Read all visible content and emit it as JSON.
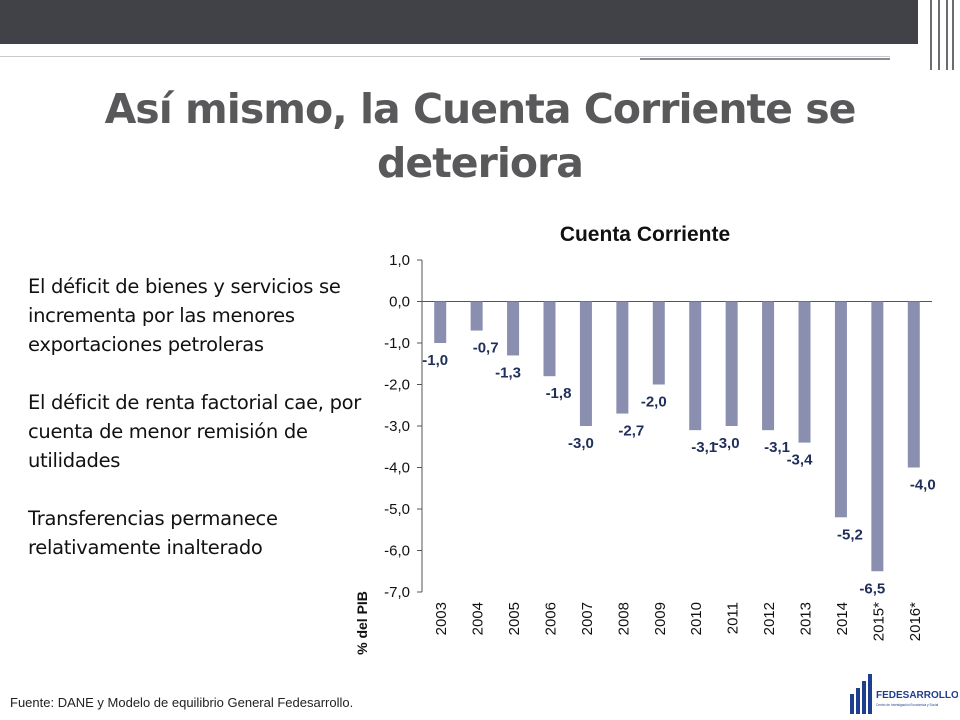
{
  "slide": {
    "title": "Así mismo, la Cuenta Corriente se deteriora",
    "bullets": [
      "El déficit de bienes y servicios se incrementa por las menores exportaciones petroleras",
      "El déficit de renta factorial cae, por cuenta de menor remisión de utilidades",
      "Transferencias permanece relativamente inalterado"
    ],
    "footer": "Fuente: DANE y Modelo de equilibrio General Fedesarrollo.",
    "logo_text": "FEDESARROLLO",
    "logo_tagline": "Centro de Investigación Económica y Social"
  },
  "colors": {
    "bar": "#8a8fb0",
    "data_label": "#1f2f5a",
    "title": "#59595b",
    "header": "#404248"
  },
  "chart_data": {
    "type": "bar",
    "title": "Cuenta Corriente",
    "ylabel": "% del PIB",
    "xlabel": "",
    "categories": [
      "2003",
      "2004",
      "2005",
      "2006",
      "2007",
      "2008",
      "2009",
      "2010",
      "2011",
      "2012",
      "2013",
      "2014",
      "2015*",
      "2016*"
    ],
    "values": [
      -1.0,
      -0.7,
      -1.3,
      -1.8,
      -3.0,
      -2.7,
      -2.0,
      -3.1,
      -3.0,
      -3.1,
      -3.4,
      -5.2,
      -6.5,
      -4.0
    ],
    "value_labels": [
      "-1,0",
      "-0,7",
      "-1,3",
      "-1,8",
      "-3,0",
      "-2,7",
      "-2,0",
      "-3,1",
      "-3,0",
      "-3,1",
      "-3,4",
      "-5,2",
      "-6,5",
      "-4,0"
    ],
    "yticks": [
      1.0,
      0.0,
      -1.0,
      -2.0,
      -3.0,
      -4.0,
      -5.0,
      -6.0,
      -7.0
    ],
    "ytick_labels": [
      "1,0",
      "0,0",
      "-1,0",
      "-2,0",
      "-3,0",
      "-4,0",
      "-5,0",
      "-6,0",
      "-7,0"
    ],
    "ylim": [
      -7.0,
      1.0
    ],
    "grid": false,
    "legend": "none"
  }
}
